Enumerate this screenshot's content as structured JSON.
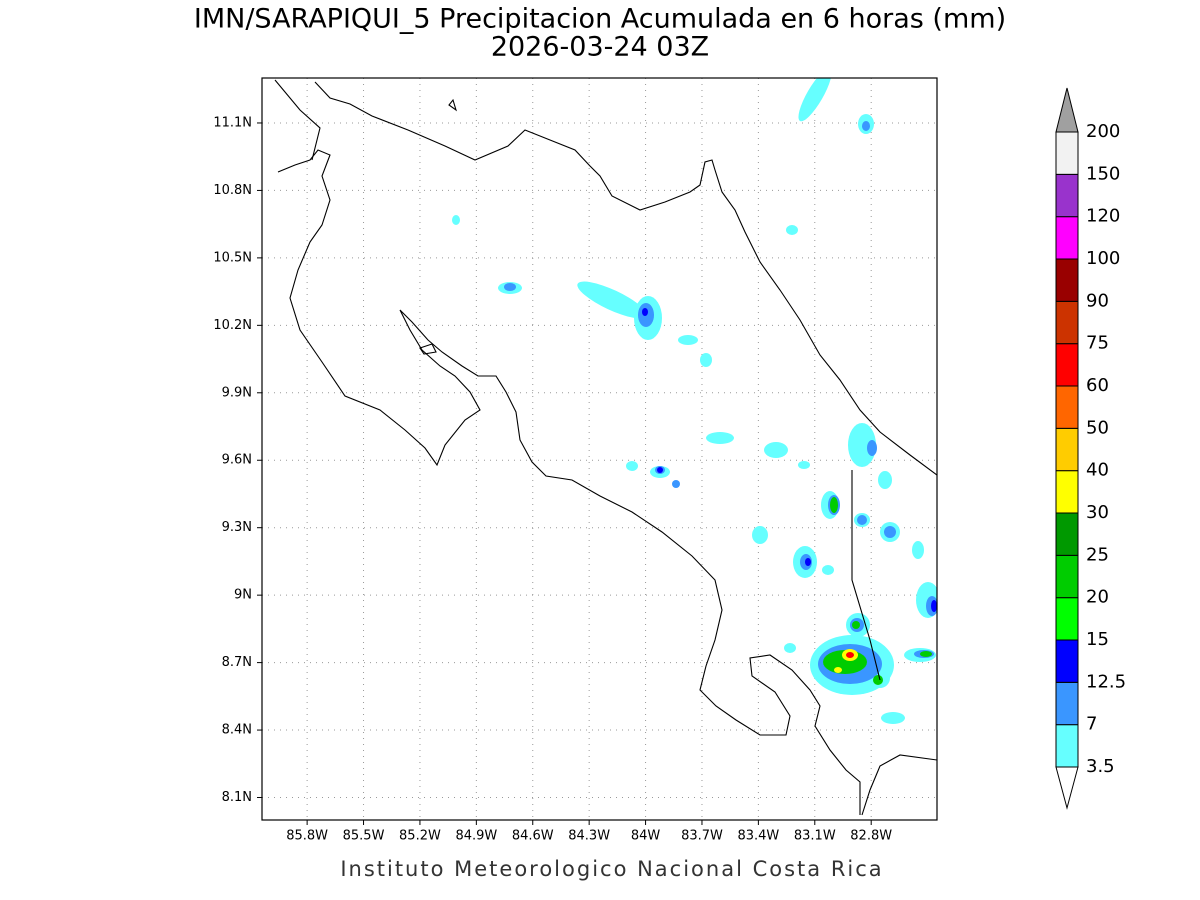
{
  "title": "IMN/SARAPIQUI_5 Precipitacion Acumulada en 6 horas (mm)",
  "subtitle": "2026-03-24 03Z",
  "map": {
    "lon_lim": [
      -86.04,
      -82.45
    ],
    "lat_lim": [
      8.0,
      11.3
    ],
    "lon_ticks": [
      {
        "value": -85.8,
        "label": "85.8W"
      },
      {
        "value": -85.5,
        "label": "85.5W"
      },
      {
        "value": -85.2,
        "label": "85.2W"
      },
      {
        "value": -84.9,
        "label": "84.9W"
      },
      {
        "value": -84.6,
        "label": "84.6W"
      },
      {
        "value": -84.3,
        "label": "84.3W"
      },
      {
        "value": -84.0,
        "label": "84W"
      },
      {
        "value": -83.7,
        "label": "83.7W"
      },
      {
        "value": -83.4,
        "label": "83.4W"
      },
      {
        "value": -83.1,
        "label": "83.1W"
      },
      {
        "value": -82.8,
        "label": "82.8W"
      }
    ],
    "lat_ticks": [
      {
        "value": 8.1,
        "label": "8.1N"
      },
      {
        "value": 8.4,
        "label": "8.4N"
      },
      {
        "value": 8.7,
        "label": "8.7N"
      },
      {
        "value": 9.0,
        "label": "9N"
      },
      {
        "value": 9.3,
        "label": "9.3N"
      },
      {
        "value": 9.6,
        "label": "9.6N"
      },
      {
        "value": 9.9,
        "label": "9.9N"
      },
      {
        "value": 10.2,
        "label": "10.2N"
      },
      {
        "value": 10.5,
        "label": "10.5N"
      },
      {
        "value": 10.8,
        "label": "10.8N"
      },
      {
        "value": 11.1,
        "label": "11.1N"
      }
    ],
    "grid": true
  },
  "colorbar": {
    "levels": [
      3.5,
      7,
      12.5,
      15,
      20,
      25,
      30,
      40,
      50,
      60,
      75,
      90,
      100,
      120,
      150,
      200
    ],
    "colors": [
      "#66ffff",
      "#3a96ff",
      "#0000ff",
      "#00ff00",
      "#00cc00",
      "#009900",
      "#ffff00",
      "#ffcc00",
      "#ff6600",
      "#ff0000",
      "#cc3300",
      "#990000",
      "#ff00ff",
      "#9933cc",
      "#f2f2f2"
    ],
    "under_color": "#ffffff",
    "over_color": "#a0a0a0"
  },
  "credit": "Instituto Meteorologico Nacional Costa Rica"
}
